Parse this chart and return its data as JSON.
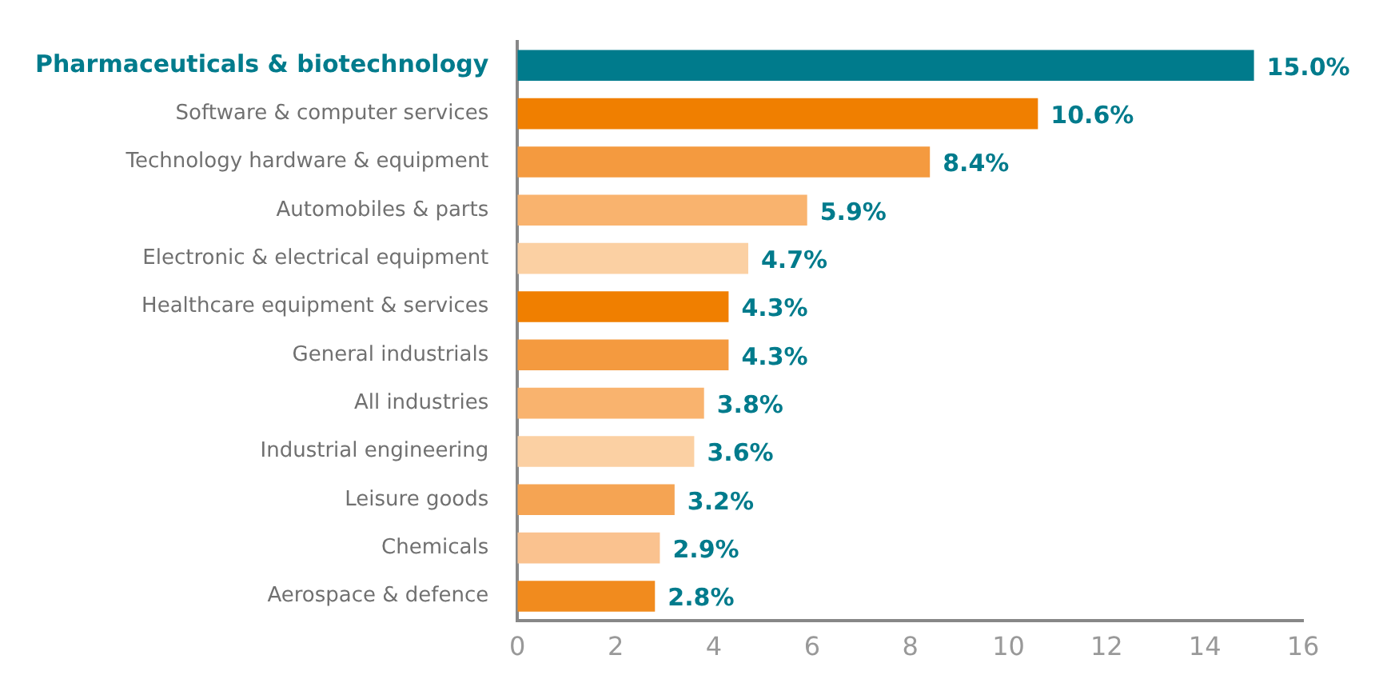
{
  "chart_data": {
    "type": "bar",
    "orientation": "horizontal",
    "categories": [
      "Pharmaceuticals & biotechnology",
      "Software & computer services",
      "Technology hardware & equipment",
      "Automobiles & parts",
      "Electronic & electrical equipment",
      "Healthcare equipment & services",
      "General industrials",
      "All industries",
      "Industrial engineering",
      "Leisure goods",
      "Chemicals",
      "Aerospace & defence"
    ],
    "values": [
      15.0,
      10.6,
      8.4,
      5.9,
      4.7,
      4.3,
      4.3,
      3.8,
      3.6,
      3.2,
      2.9,
      2.8
    ],
    "colors": [
      "#007b8c",
      "#f07f00",
      "#f49a3f",
      "#f9b36e",
      "#fbd0a3",
      "#f07f00",
      "#f49a3f",
      "#f9b36e",
      "#fbd0a3",
      "#f5a453",
      "#fac28f",
      "#f18b1e"
    ],
    "value_labels": [
      "15.0%",
      "10.6%",
      "8.4%",
      "5.9%",
      "4.7%",
      "4.3%",
      "4.3%",
      "3.8%",
      "3.6%",
      "3.2%",
      "2.9%",
      "2.8%"
    ],
    "xlim": [
      0,
      16
    ],
    "xticks": [
      0,
      2,
      4,
      6,
      8,
      10,
      12,
      14,
      16
    ],
    "grid": false,
    "legend": false
  }
}
